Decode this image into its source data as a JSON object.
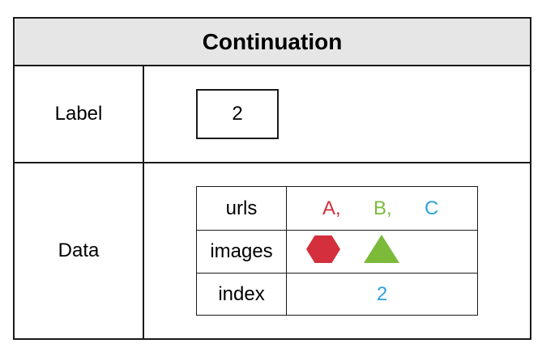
{
  "title": "Continuation",
  "rows": {
    "label": {
      "name": "Label",
      "value": "2"
    },
    "data": {
      "name": "Data",
      "fields": {
        "urls": {
          "key": "urls",
          "items": [
            {
              "text": "A,",
              "color": "#d32f3c"
            },
            {
              "text": "B,",
              "color": "#7cba3a"
            },
            {
              "text": "C",
              "color": "#2fa3dc"
            }
          ]
        },
        "images": {
          "key": "images",
          "shapes": [
            {
              "shape": "hexagon",
              "color": "#d32f3c"
            },
            {
              "shape": "triangle",
              "color": "#7cba3a"
            }
          ]
        },
        "index": {
          "key": "index",
          "value": "2",
          "color": "#2fa3dc"
        }
      }
    }
  },
  "colors": {
    "header_bg": "#e6e6e6",
    "border": "#1a1a1a"
  }
}
